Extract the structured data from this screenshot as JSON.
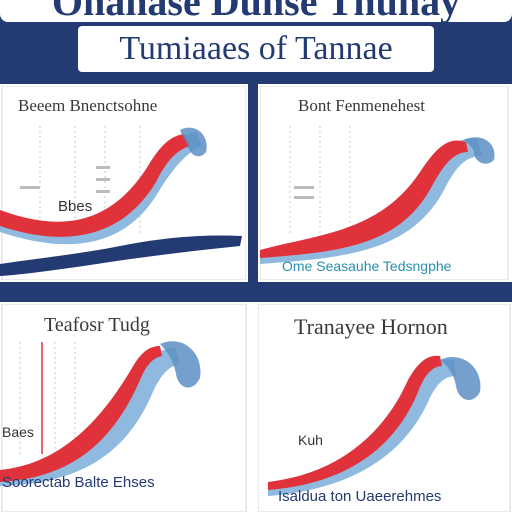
{
  "header": {
    "line1": "Onanase Dunse Thunay",
    "line2": "Tumiaaes of Tannae"
  },
  "panels": [
    {
      "title": "Beeem Bnenctsohne",
      "label": "Bbes",
      "sublabel": "",
      "footer": ""
    },
    {
      "title": "Bont Fenmenehest",
      "label": "",
      "sublabel": "",
      "footer": "Ome Seasauhe Tedsngphe"
    },
    {
      "title": "Teafosr Tudg",
      "label": "Baes",
      "sublabel": "",
      "footer": "Soorectab Balte Ehses"
    },
    {
      "title": "Tranayee Hornon",
      "label": "Kuh",
      "sublabel": "",
      "footer": "Isaldua ton Uaeerehmes"
    }
  ],
  "colors": {
    "navy": "#243a73",
    "red": "#e0323a",
    "lightblue": "#8fb9df",
    "wave": "#5d8fc4"
  }
}
